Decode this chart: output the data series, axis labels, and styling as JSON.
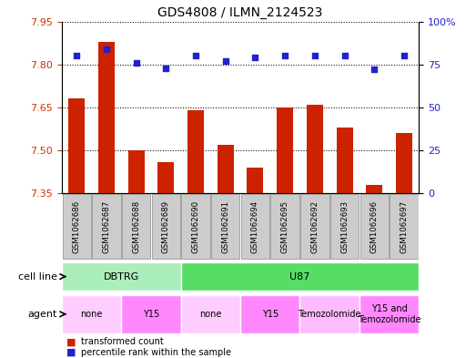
{
  "title": "GDS4808 / ILMN_2124523",
  "samples": [
    "GSM1062686",
    "GSM1062687",
    "GSM1062688",
    "GSM1062689",
    "GSM1062690",
    "GSM1062691",
    "GSM1062694",
    "GSM1062695",
    "GSM1062692",
    "GSM1062693",
    "GSM1062696",
    "GSM1062697"
  ],
  "transformed_counts": [
    7.68,
    7.88,
    7.5,
    7.46,
    7.64,
    7.52,
    7.44,
    7.65,
    7.66,
    7.58,
    7.38,
    7.56
  ],
  "percentile_ranks": [
    80,
    84,
    76,
    73,
    80,
    77,
    79,
    80,
    80,
    80,
    72,
    80
  ],
  "ylim_left": [
    7.35,
    7.95
  ],
  "ylim_right": [
    0,
    100
  ],
  "yticks_left": [
    7.35,
    7.5,
    7.65,
    7.8,
    7.95
  ],
  "yticks_right": [
    0,
    25,
    50,
    75,
    100
  ],
  "ytick_labels_right": [
    "0",
    "25",
    "50",
    "75",
    "100%"
  ],
  "bar_color": "#cc2200",
  "dot_color": "#2222cc",
  "sample_box_color": "#cccccc",
  "sample_box_edge": "#888888",
  "cell_line_row": {
    "label": "cell line",
    "groups": [
      {
        "name": "DBTRG",
        "start": 0,
        "end": 4,
        "color": "#aaeebb"
      },
      {
        "name": "U87",
        "start": 4,
        "end": 12,
        "color": "#55dd66"
      }
    ]
  },
  "agent_row": {
    "label": "agent",
    "groups": [
      {
        "name": "none",
        "start": 0,
        "end": 2,
        "color": "#ffccff"
      },
      {
        "name": "Y15",
        "start": 2,
        "end": 4,
        "color": "#ff88ff"
      },
      {
        "name": "none",
        "start": 4,
        "end": 6,
        "color": "#ffccff"
      },
      {
        "name": "Y15",
        "start": 6,
        "end": 8,
        "color": "#ff88ff"
      },
      {
        "name": "Temozolomide",
        "start": 8,
        "end": 10,
        "color": "#ffbbff"
      },
      {
        "name": "Y15 and\nTemozolomide",
        "start": 10,
        "end": 12,
        "color": "#ff88ff"
      }
    ]
  },
  "legend_items": [
    {
      "label": "transformed count",
      "color": "#cc2200"
    },
    {
      "label": "percentile rank within the sample",
      "color": "#2222cc"
    }
  ],
  "tick_label_color_left": "#cc3300",
  "tick_label_color_right": "#2222cc"
}
